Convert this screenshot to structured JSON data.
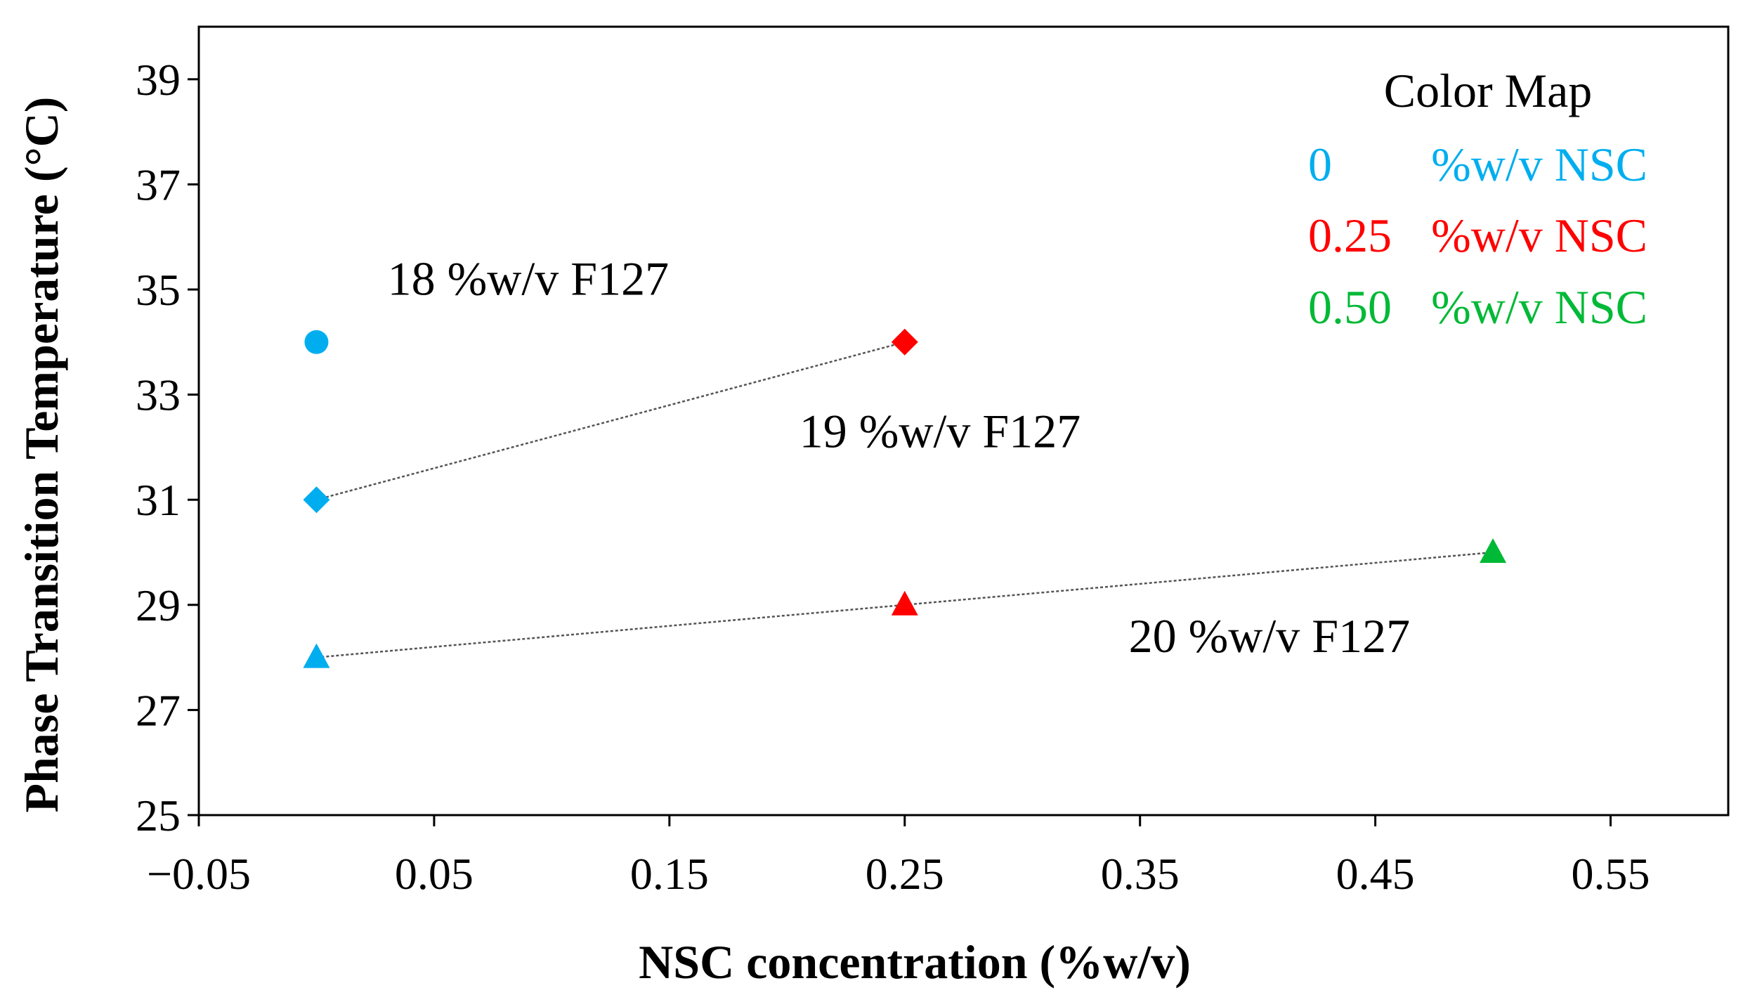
{
  "chart_data": {
    "type": "scatter",
    "xlabel": "NSC concentration (%w/v)",
    "ylabel": "Phase Transition Temperature (°C)",
    "xlim": [
      -0.05,
      0.6
    ],
    "ylim": [
      25,
      40
    ],
    "xticks": [
      -0.05,
      0.05,
      0.15,
      0.25,
      0.35,
      0.45,
      0.55
    ],
    "xtick_labels": [
      "−0.05",
      "0.05",
      "0.15",
      "0.25",
      "0.35",
      "0.45",
      "0.55"
    ],
    "yticks": [
      25,
      27,
      29,
      31,
      33,
      35,
      37,
      39
    ],
    "ytick_labels": [
      "25",
      "27",
      "29",
      "31",
      "33",
      "35",
      "37",
      "39"
    ],
    "grid": false,
    "colors": {
      "nsc_0": "#00AEEF",
      "nsc_025": "#FF0000",
      "nsc_050": "#00B936"
    },
    "series": [
      {
        "group": "18 %w/v F127",
        "marker": "circle",
        "connected": false,
        "points": [
          {
            "x": 0,
            "y": 34,
            "color_key": "nsc_0"
          }
        ]
      },
      {
        "group": "19 %w/v F127",
        "marker": "diamond",
        "connected": true,
        "points": [
          {
            "x": 0,
            "y": 31,
            "color_key": "nsc_0"
          },
          {
            "x": 0.25,
            "y": 34,
            "color_key": "nsc_025"
          }
        ]
      },
      {
        "group": "20 %w/v F127",
        "marker": "triangle",
        "connected": true,
        "points": [
          {
            "x": 0,
            "y": 28,
            "color_key": "nsc_0"
          },
          {
            "x": 0.25,
            "y": 29,
            "color_key": "nsc_025"
          },
          {
            "x": 0.5,
            "y": 30,
            "color_key": "nsc_050"
          }
        ]
      }
    ],
    "annotations": [
      {
        "text": "18 %w/v F127",
        "x": 0.09,
        "y": 34.9
      },
      {
        "text": "19 %w/v F127",
        "x": 0.265,
        "y": 32.0
      },
      {
        "text": "20 %w/v F127",
        "x": 0.405,
        "y": 28.1
      }
    ],
    "legend": {
      "placement": "top-right",
      "title": "Color Map",
      "entries": [
        {
          "value": "0",
          "unit": "%w/v NSC",
          "color_key": "nsc_0"
        },
        {
          "value": "0.25",
          "unit": "%w/v NSC",
          "color_key": "nsc_025"
        },
        {
          "value": "0.50",
          "unit": "%w/v NSC",
          "color_key": "nsc_050"
        }
      ]
    }
  }
}
